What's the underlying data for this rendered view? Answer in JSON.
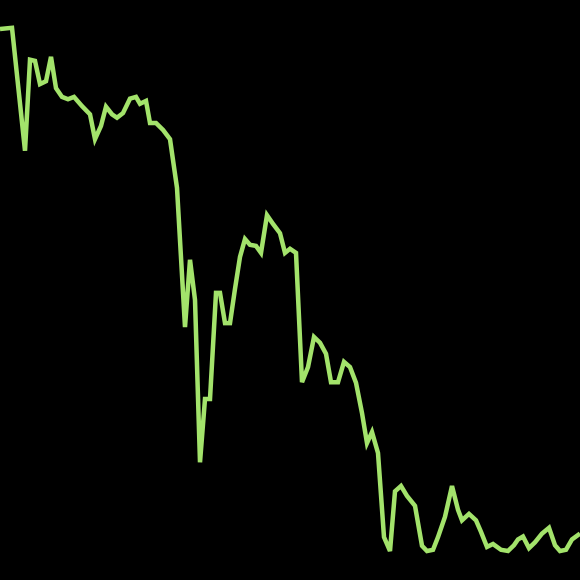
{
  "chart_data": {
    "type": "line",
    "title": "",
    "xlabel": "",
    "ylabel": "",
    "grid": false,
    "legend": "none",
    "colors": {
      "background": "#000000",
      "line": "#a3e36b"
    },
    "xlim": [
      0,
      100
    ],
    "ylim": [
      0,
      100
    ],
    "series": [
      {
        "x": [
          0,
          2.07,
          4.31,
          5.17,
          6.03,
          6.9,
          7.93,
          8.79,
          9.66,
          10.69,
          11.72,
          12.76,
          14.14,
          15.52,
          16.38,
          17.41,
          18.28,
          19.31,
          20.17,
          21.21,
          22.41,
          23.45,
          24.14,
          25.17,
          25.86,
          26.9,
          28.1,
          29.31,
          30.52,
          31.9,
          32.76,
          33.62,
          34.48,
          35.34,
          36.21,
          37.24,
          37.93,
          38.79,
          39.66,
          40.52,
          41.38,
          42.24,
          43.1,
          44.14,
          45.0,
          46.03,
          47.07,
          48.28,
          49.14,
          50.0,
          51.03,
          52.07,
          53.1,
          54.14,
          55.17,
          56.21,
          57.07,
          58.28,
          59.31,
          60.34,
          61.38,
          62.41,
          63.28,
          64.14,
          65.17,
          66.21,
          67.24,
          68.1,
          69.14,
          70.17,
          71.55,
          72.76,
          73.62,
          74.66,
          75.52,
          76.72,
          77.93,
          78.97,
          79.66,
          80.86,
          82.07,
          82.93,
          83.97,
          85.0,
          86.38,
          87.59,
          88.62,
          89.31,
          90.17,
          91.21,
          92.24,
          93.45,
          94.66,
          95.69,
          96.55,
          97.59,
          98.62,
          100
        ],
        "y": [
          95.0,
          95.2,
          74.0,
          89.7,
          89.5,
          85.5,
          86.0,
          90.2,
          84.8,
          83.3,
          82.9,
          83.3,
          81.7,
          80.3,
          76.0,
          78.3,
          81.6,
          80.3,
          79.7,
          80.5,
          83.0,
          83.3,
          82.1,
          82.6,
          78.8,
          78.8,
          77.6,
          76.0,
          67.6,
          43.6,
          55.2,
          48.3,
          20.3,
          31.2,
          31.2,
          49.5,
          49.5,
          44.3,
          44.3,
          50.2,
          55.7,
          58.8,
          57.8,
          57.6,
          56.4,
          62.9,
          61.4,
          59.8,
          56.4,
          57.1,
          56.4,
          34.1,
          36.7,
          41.9,
          40.9,
          39.0,
          34.1,
          34.1,
          37.6,
          36.7,
          34.0,
          28.8,
          23.6,
          25.5,
          21.9,
          7.4,
          5.0,
          15.3,
          16.2,
          14.5,
          12.8,
          5.9,
          5.0,
          5.2,
          7.4,
          10.9,
          16.2,
          12.1,
          10.3,
          11.4,
          10.3,
          8.3,
          5.7,
          6.2,
          5.2,
          5.0,
          6.0,
          7.0,
          7.5,
          5.5,
          6.5,
          8.0,
          9.0,
          6.0,
          5.0,
          5.2,
          7.0,
          8.0
        ]
      }
    ]
  }
}
